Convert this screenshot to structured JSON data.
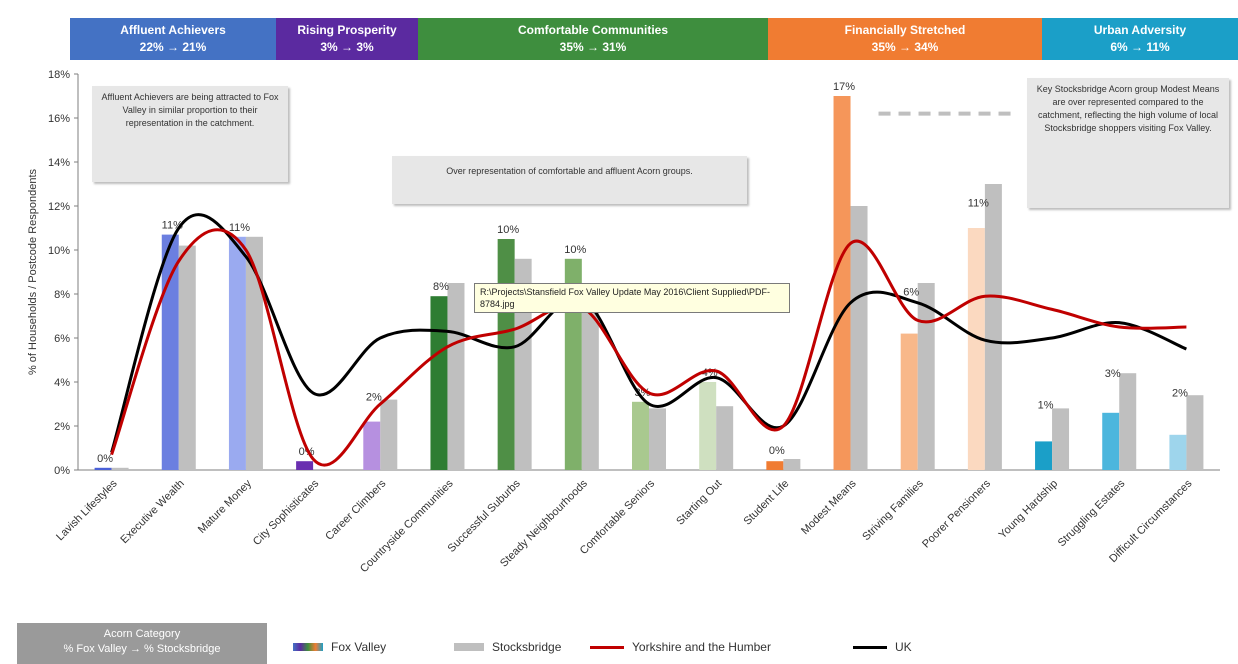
{
  "header": {
    "bands": [
      {
        "name": "Affluent Achievers",
        "change": "22% → 21%",
        "color": "#4472c4"
      },
      {
        "name": "Rising Prosperity",
        "change": "3% → 3%",
        "color": "#5b2aa0"
      },
      {
        "name": "Comfortable Communities",
        "change": "35% → 31%",
        "color": "#3e8e3e"
      },
      {
        "name": "Financially Stretched",
        "change": "35% → 34%",
        "color": "#f07c32"
      },
      {
        "name": "Urban Adversity",
        "change": "6% → 11%",
        "color": "#1b9fc8"
      }
    ]
  },
  "annotations": {
    "affluent": "Affluent Achievers are being attracted to Fox Valley in similar proportion to their representation in the catchment.",
    "comfortable": "Over representation of comfortable and affluent Acorn groups.",
    "modest": "Key Stocksbridge Acorn group Modest Means are over represented compared to the catchment, reflecting the high volume of local Stocksbridge shoppers visiting Fox Valley.",
    "tooltip": "R:\\Projects\\Stansfield Fox Valley Update May 2016\\Client Supplied\\PDF-8784.jpg"
  },
  "legend": {
    "category_title": "Acorn Category",
    "category_subtitle": "% Fox Valley → % Stocksbridge",
    "fox_valley": "Fox Valley",
    "stocksbridge": "Stocksbridge",
    "yorkshire": "Yorkshire and the Humber",
    "uk": "UK"
  },
  "chart_data": {
    "type": "bar",
    "ylabel": "% of Households / Postcode Respondents",
    "ylim": [
      0,
      18
    ],
    "yticks": [
      "0%",
      "2%",
      "4%",
      "6%",
      "8%",
      "10%",
      "12%",
      "14%",
      "16%",
      "18%"
    ],
    "categories": [
      "Lavish Lifestyles",
      "Executive Wealth",
      "Mature Money",
      "City Sophisticates",
      "Career Climbers",
      "Countryside Communities",
      "Successful Suburbs",
      "Steady Neighbourhoods",
      "Comfortable Seniors",
      "Starting Out",
      "Student Life",
      "Modest Means",
      "Striving Families",
      "Poorer Pensioners",
      "Young Hardship",
      "Struggling Estates",
      "Difficult Circumstances"
    ],
    "category_colors": [
      "#4a60d8",
      "#6b7fe0",
      "#9aaaf0",
      "#6a2fb0",
      "#b690e0",
      "#2e7d32",
      "#4f8f46",
      "#7fb06a",
      "#a9c98f",
      "#cfe0c0",
      "#f07c32",
      "#f5965a",
      "#f8b88a",
      "#fbd9c0",
      "#1b9fc8",
      "#4cb6dd",
      "#9ed5ec"
    ],
    "series": [
      {
        "name": "Fox Valley",
        "values": [
          0.1,
          10.7,
          10.6,
          0.4,
          2.2,
          7.9,
          10.5,
          9.6,
          3.1,
          4.0,
          0.4,
          17.0,
          6.2,
          11.0,
          1.3,
          2.6,
          1.6
        ]
      },
      {
        "name": "Stocksbridge",
        "values": [
          0.1,
          10.2,
          10.6,
          0.0,
          3.2,
          8.5,
          9.6,
          7.3,
          2.8,
          2.9,
          0.5,
          12.0,
          8.5,
          13.0,
          2.8,
          4.4,
          3.4
        ]
      },
      {
        "name": "Yorkshire and the Humber",
        "values": [
          0.7,
          9.5,
          10.0,
          0.5,
          3.0,
          5.6,
          6.4,
          7.4,
          3.5,
          4.5,
          2.0,
          10.3,
          6.8,
          7.9,
          7.3,
          6.5,
          6.5
        ]
      },
      {
        "name": "UK",
        "values": [
          0.8,
          11.0,
          9.7,
          3.5,
          6.0,
          6.3,
          5.6,
          7.8,
          3.0,
          4.2,
          2.0,
          7.6,
          7.6,
          5.9,
          6.0,
          6.7,
          5.5
        ]
      }
    ],
    "series_colors": {
      "stocksbridge": "#bfbfbf",
      "yorkshire": "#c00000",
      "uk": "#000000"
    },
    "data_labels": [
      "0%",
      "11%",
      "11%",
      "0%",
      "2%",
      "8%",
      "10%",
      "10%",
      "3%",
      "4%",
      "0%",
      "17%",
      "6%",
      "11%",
      "1%",
      "3%",
      "2%"
    ],
    "reference_line": {
      "value": 16.2,
      "from": "Modest Means",
      "to": "Poorer Pensioners",
      "style": "dashed",
      "color": "#bfbfbf"
    },
    "grid": false,
    "legend_position": "bottom"
  }
}
